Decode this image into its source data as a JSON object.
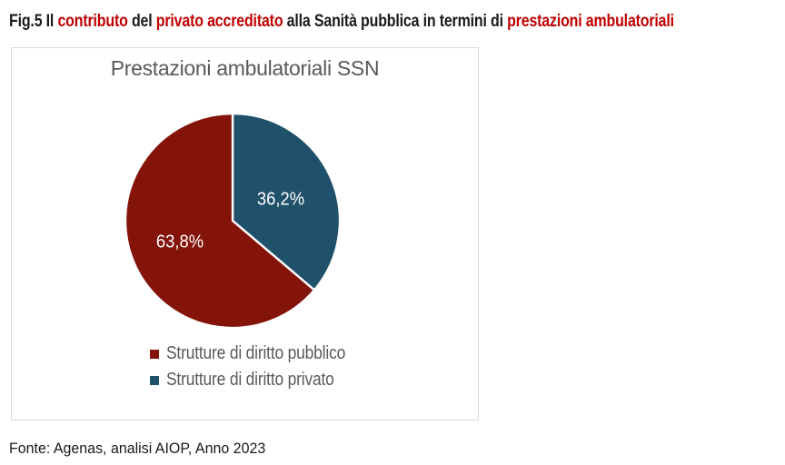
{
  "colors": {
    "caption_accent": "#C00000",
    "caption_text": "#1A1A1A",
    "chart_text_gray": "#595959",
    "panel_border": "#D9D9D9",
    "label_text_white": "#FFFFFF"
  },
  "caption": {
    "segments": [
      {
        "text": "Fig.5 Il ",
        "emphasis": false
      },
      {
        "text": "contributo",
        "emphasis": true
      },
      {
        "text": " del ",
        "emphasis": false
      },
      {
        "text": "privato accreditato",
        "emphasis": true
      },
      {
        "text": " alla Sanità pubblica in termini di ",
        "emphasis": false
      },
      {
        "text": "prestazioni ambulatoriali",
        "emphasis": true
      }
    ]
  },
  "chart_data": {
    "type": "pie",
    "title": "Prestazioni ambulatoriali SSN",
    "legend_position": "bottom",
    "direction": "clockwise",
    "start_slice": "Strutture di diritto privato",
    "start_angle_deg": 0,
    "slices": [
      {
        "label": "Strutture di diritto pubblico",
        "value": 63.8,
        "display": "63,8%",
        "color": "#84130A"
      },
      {
        "label": "Strutture di diritto privato",
        "value": 36.2,
        "display": "36,2%",
        "color": "#20516A"
      }
    ]
  },
  "footer": {
    "source": "Fonte: Agenas, analisi AIOP, Anno 2023"
  }
}
